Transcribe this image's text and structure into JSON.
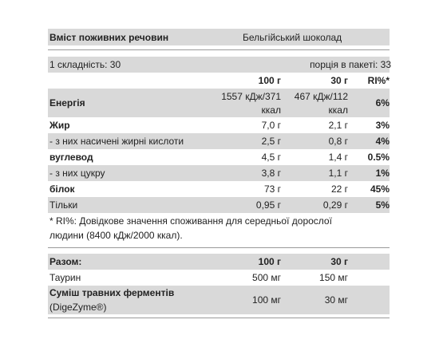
{
  "header": {
    "title": "Вміст поживних речовин",
    "product": "Бельгійський шоколад"
  },
  "serving": {
    "count_label": "1 складність: 30",
    "per_pack": "порція в пакеті: 33"
  },
  "columns": {
    "c1": "100 г",
    "c2": "30 г",
    "c3": "RI%*"
  },
  "rows": [
    {
      "name": "Енергія",
      "v1a": "1557 кДж/371",
      "v1b": "ккал",
      "v2a": "467 кДж/112",
      "v2b": "ккал",
      "ri": "6%"
    },
    {
      "name": "Жир",
      "v1": "7,0 г",
      "v2": "2,1 г",
      "ri": "3%"
    },
    {
      "name": "- з них насичені жирні кислоти",
      "v1": "2,5 г",
      "v2": "0,8 г",
      "ri": "4%"
    },
    {
      "name": "вуглевод",
      "v1": "4,5 г",
      "v2": "1,4 г",
      "ri": "0.5%"
    },
    {
      "name": "- з них цукру",
      "v1": "3,8 г",
      "v2": "1,1 г",
      "ri": "1%"
    },
    {
      "name": "білок",
      "v1": "73 г",
      "v2": "22 г",
      "ri": "45%"
    },
    {
      "name": "Тільки",
      "v1": "0,95 г",
      "v2": "0,29 г",
      "ri": "5%"
    }
  ],
  "footnote": {
    "line1": "* RI%: Довідкове значення споживання для середньої дорослої",
    "line2": "людини (8400 кДж/2000 ккал)."
  },
  "totals": {
    "label": "Разом:",
    "c1": "100 г",
    "c2": "30 г",
    "items": [
      {
        "name": "Таурин",
        "v1": "500 мг",
        "v2": "150 мг"
      },
      {
        "name": "Суміш травних ферментів",
        "sub": "(DigeZyme®)",
        "v1": "100 мг",
        "v2": "30 мг"
      }
    ]
  }
}
